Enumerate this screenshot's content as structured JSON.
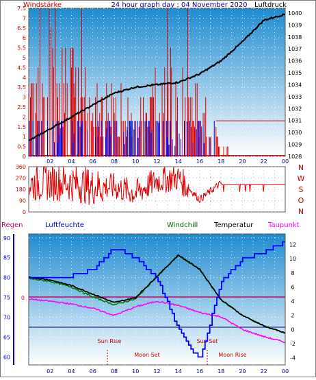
{
  "header": {
    "left_label": "Windstärke",
    "title": "24 hour graph day : 04 November 2020",
    "right_label": "Luftdruck"
  },
  "colors": {
    "wind": "#e00000",
    "gust": "#0000e0",
    "pressure": "#000000",
    "humidity": "#0000ff",
    "windchill": "#006400",
    "temperature": "#000000",
    "dewpoint": "#ff00ff",
    "rain": "#cc0033",
    "panel_top": "#1e8bd0",
    "panel_bottom": "#ffffff"
  },
  "time_axis": {
    "ticks": [
      "02",
      "04",
      "06",
      "08",
      "10",
      "12",
      "14",
      "16",
      "18",
      "20",
      "22",
      "00"
    ]
  },
  "wind_panel": {
    "left_ticks": [
      "7.5",
      "7",
      "6.5",
      "6",
      "5.5",
      "5",
      "4.5",
      "4",
      "3.5",
      "3",
      "2.5",
      "2",
      "1.5",
      "1",
      "0.5",
      "0"
    ],
    "right_ticks": [
      "1040",
      "1039",
      "1038",
      "1037",
      "1036",
      "1035",
      "1034",
      "1033",
      "1032",
      "1031",
      "1030",
      "1029",
      "1028"
    ],
    "pressure_range": [
      1028,
      1040.4
    ],
    "wind_range": [
      0,
      7.5
    ]
  },
  "direction_panel": {
    "left_ticks": [
      "360",
      "270",
      "180",
      "90",
      "0"
    ],
    "compass": [
      "N",
      "W",
      "S",
      "O",
      "N"
    ]
  },
  "temp_panel": {
    "labels": {
      "rain": "Regen",
      "humidity": "Luftfeuchte",
      "windchill": "Windchill",
      "temperature": "Temperatur",
      "dewpoint": "Taupunkt"
    },
    "left_ticks": [
      "90",
      "85",
      "80",
      "75",
      "70",
      "65",
      "60"
    ],
    "rain_tick": "0",
    "right_ticks": [
      "12",
      "10",
      "8",
      "6",
      "4",
      "2",
      "0",
      "-2",
      "-4"
    ],
    "annotations": {
      "sun_rise": "Sun Rise",
      "sun_set": "Sun Set",
      "moon_set": "Moon Set",
      "moon_rise": "Moon Rise"
    }
  },
  "chart_data": [
    {
      "type": "line",
      "title": "24 hour graph day : 04 November 2020",
      "x": [
        "00",
        "02",
        "04",
        "06",
        "08",
        "10",
        "12",
        "14",
        "16",
        "18",
        "20",
        "22",
        "00"
      ],
      "series": [
        {
          "name": "Windstärke",
          "values": [
            3.5,
            4.0,
            3.6,
            2.2,
            2.5,
            1.8,
            3.0,
            3.8,
            2.2,
            0.5,
            0.2,
            0.2,
            0.2
          ]
        },
        {
          "name": "Luftdruck",
          "values": [
            1029.3,
            1030.3,
            1031.3,
            1032.3,
            1033.3,
            1033.8,
            1034.0,
            1034.2,
            1034.9,
            1036.0,
            1037.6,
            1039.4,
            1039.9
          ]
        }
      ],
      "ylim_left": [
        0,
        7.5
      ],
      "ylim_right": [
        1028,
        1040.4
      ]
    },
    {
      "type": "line",
      "x": [
        "00",
        "02",
        "04",
        "06",
        "08",
        "10",
        "12",
        "14",
        "16",
        "18",
        "20",
        "22",
        "00"
      ],
      "series": [
        {
          "name": "Windrichtung",
          "values": [
            220,
            240,
            230,
            200,
            200,
            150,
            250,
            270,
            100,
            230,
            220,
            220,
            220
          ]
        }
      ],
      "ylim": [
        0,
        360
      ]
    },
    {
      "type": "line",
      "x": [
        "00",
        "02",
        "04",
        "06",
        "08",
        "10",
        "12",
        "14",
        "16",
        "18",
        "20",
        "22",
        "00"
      ],
      "series": [
        {
          "name": "Luftfeuchte",
          "values": [
            80.0,
            80.0,
            80.5,
            82.0,
            87.5,
            85.0,
            80.0,
            67.0,
            59.0,
            79.0,
            84.5,
            86.5,
            89.0
          ]
        },
        {
          "name": "Temperatur",
          "values": [
            7.4,
            7.0,
            6.2,
            5.0,
            3.8,
            4.5,
            7.5,
            10.5,
            8.5,
            4.2,
            2.0,
            0.5,
            -0.5
          ]
        },
        {
          "name": "Windchill",
          "values": [
            7.2,
            6.8,
            6.0,
            4.6,
            3.5,
            4.3,
            7.5,
            10.5,
            8.5,
            4.2,
            2.0,
            0.5,
            -0.5
          ]
        },
        {
          "name": "Taupunkt",
          "values": [
            4.3,
            4.0,
            3.6,
            3.0,
            2.0,
            3.2,
            4.0,
            3.4,
            2.4,
            1.8,
            0.0,
            -1.0,
            -1.8
          ]
        },
        {
          "name": "Regen",
          "values": [
            0,
            0,
            0,
            0,
            0,
            0,
            0,
            0,
            0,
            0,
            0,
            0,
            0
          ]
        }
      ],
      "ylim_left": [
        58,
        91
      ],
      "ylim_right": [
        -5,
        13.5
      ]
    }
  ]
}
